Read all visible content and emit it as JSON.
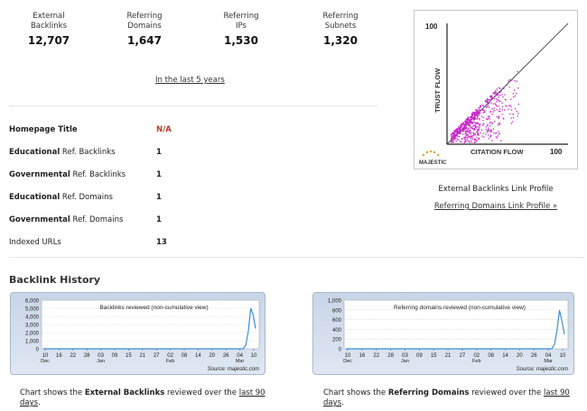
{
  "stats": [
    {
      "label": "External\nBacklinks",
      "value": "12,707"
    },
    {
      "label": "Referring\nDomains",
      "value": "1,647"
    },
    {
      "label": "Referring\nIPs",
      "value": "1,530"
    },
    {
      "label": "Referring\nSubnets",
      "value": "1,320"
    }
  ],
  "period_link": "In the last 5 years",
  "properties": [
    {
      "bold": "Homepage Title",
      "rest": "",
      "value": "N/A"
    },
    {
      "bold": "Educational",
      "rest": " Ref. Backlinks",
      "value": "1"
    },
    {
      "bold": "Governmental",
      "rest": " Ref. Backlinks",
      "value": "1"
    },
    {
      "bold": "Educational",
      "rest": " Ref. Domains",
      "value": "1"
    },
    {
      "bold": "Governmental",
      "rest": " Ref. Domains",
      "value": "1"
    },
    {
      "bold": "",
      "rest": "Indexed URLs",
      "value": "13"
    }
  ],
  "flow_chart": {
    "y_max_label": "100",
    "x_max_label": "100",
    "y_axis_label": "TRUST FLOW",
    "x_axis_label": "CITATION FLOW",
    "brand": "MAJESTIC"
  },
  "profile_title": "External Backlinks Link Profile",
  "profile_link": "Referring Domains Link Profile »",
  "section_title": "Backlink History",
  "colors": {
    "accent_red": "#c0392b",
    "scatter": "#cc22cc",
    "line": "#3b8fd8"
  },
  "chart_data": [
    {
      "type": "line",
      "title": "Backlinks reviewed (non-cumulative view)",
      "source": "Source: majestic.com",
      "ylim": [
        0,
        6000
      ],
      "y_ticks": [
        "6,000",
        "5,000",
        "4,000",
        "3,000",
        "2,000",
        "1,000",
        "0"
      ],
      "x_ticks": [
        "10",
        "16",
        "22",
        "28",
        "03",
        "09",
        "15",
        "21",
        "27",
        "02",
        "08",
        "14",
        "20",
        "26",
        "04",
        "10"
      ],
      "month_labels": [
        "Dec",
        "Jan",
        "Feb",
        "Mar"
      ],
      "series": [
        {
          "values": [
            0,
            0,
            0,
            0,
            0,
            0,
            0,
            0,
            0,
            0,
            0,
            0,
            0,
            0,
            0,
            0,
            0,
            0,
            0,
            0,
            0,
            0,
            0,
            0,
            0,
            0,
            0,
            0,
            0,
            0,
            0,
            0,
            0,
            0,
            0,
            0,
            0,
            0,
            0,
            0,
            0,
            0,
            0,
            0,
            0,
            0,
            0,
            0,
            0,
            0,
            0,
            0,
            0,
            0,
            0,
            0,
            0,
            0,
            0,
            0,
            0,
            0,
            0,
            0,
            0,
            0,
            0,
            0,
            0,
            0,
            0,
            0,
            0,
            0,
            0,
            0,
            0,
            0,
            0,
            0,
            0,
            0,
            0,
            20,
            500,
            2200,
            5000,
            4200,
            2500
          ]
        }
      ]
    },
    {
      "type": "line",
      "title": "Referring domains reviewed (non-cumulative view)",
      "source": "Source: majestic.com",
      "ylim": [
        0,
        1000
      ],
      "y_ticks": [
        "1,000",
        "800",
        "600",
        "400",
        "200",
        "0"
      ],
      "x_ticks": [
        "10",
        "16",
        "22",
        "28",
        "03",
        "09",
        "15",
        "21",
        "27",
        "02",
        "08",
        "14",
        "20",
        "26",
        "04",
        "10"
      ],
      "month_labels": [
        "Dec",
        "Jan",
        "Feb",
        "Mar"
      ],
      "series": [
        {
          "values": [
            0,
            0,
            0,
            0,
            0,
            0,
            0,
            0,
            0,
            0,
            0,
            0,
            0,
            0,
            0,
            0,
            0,
            0,
            0,
            0,
            0,
            0,
            0,
            0,
            0,
            0,
            0,
            0,
            0,
            0,
            0,
            0,
            0,
            0,
            0,
            0,
            0,
            0,
            0,
            0,
            0,
            0,
            0,
            0,
            0,
            0,
            0,
            0,
            0,
            0,
            0,
            0,
            0,
            0,
            0,
            0,
            0,
            0,
            0,
            0,
            0,
            0,
            0,
            0,
            0,
            0,
            0,
            0,
            0,
            0,
            0,
            0,
            0,
            0,
            0,
            0,
            0,
            0,
            0,
            0,
            0,
            0,
            0,
            5,
            90,
            380,
            790,
            560,
            300
          ]
        }
      ]
    }
  ],
  "captions": [
    {
      "pre": "Chart shows the ",
      "bold": "External Backlinks",
      "mid": " reviewed over the ",
      "link": "last 90 days",
      "post": "."
    },
    {
      "pre": "Chart shows the ",
      "bold": "Referring Domains",
      "mid": " reviewed over the ",
      "link": "last 90 days",
      "post": "."
    }
  ]
}
